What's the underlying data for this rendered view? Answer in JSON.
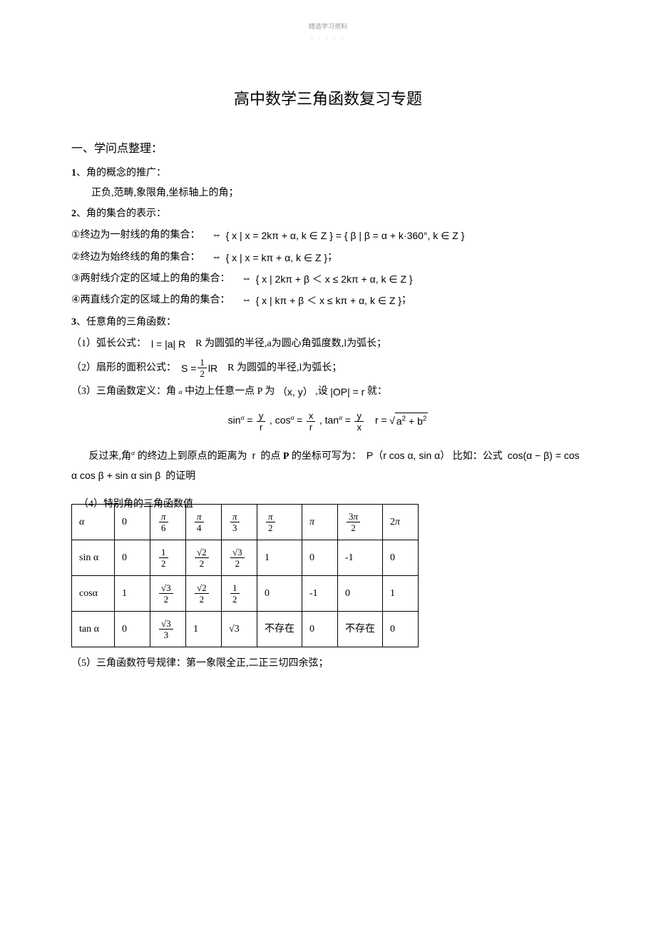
{
  "header": {
    "top_label": "精选学习资料",
    "dashes": "- - - - -"
  },
  "title": "高中数学三角函数复习专题",
  "section1": {
    "heading": "一、学问点整理：",
    "item1_num": "1",
    "item1_text": "、角的概念的推广：",
    "item1_sub": "正负,范畴,象限角,坐标轴上的角；",
    "item2_num": "2",
    "item2_text": "、角的集合的表示：",
    "sub1_num": "①",
    "sub1_label": "终边为一射线的角的集合：",
    "sub1_arrow": "⇔",
    "sub1_formula": "{ x | x = 2kπ + α, k ∈ Z } = { β | β = α + k·360°, k ∈ Z }",
    "sub2_num": "②",
    "sub2_label": "终边为始终线的角的集合：",
    "sub2_arrow": "⇔",
    "sub2_formula": "{ x | x = kπ + α, k ∈ Z }",
    "sub2_tail": "；",
    "sub3_num": "③",
    "sub3_label": "两射线介定的区域上的角的集合：",
    "sub3_arrow": "⇔",
    "sub3_formula": "{ x | 2kπ + β ＜ x ≤ 2kπ + α, k ∈ Z }",
    "sub4_num": "④",
    "sub4_label": "两直线介定的区域上的角的集合：",
    "sub4_arrow": "⇔",
    "sub4_formula": "{ x | kπ + β ＜ x ≤ kπ + α, k ∈ Z }",
    "sub4_tail": "；",
    "item3_num": "3",
    "item3_text": "、任意角的三角函数：",
    "p31_label": "（1）弧长公式：",
    "p31_formula": "l = |a| R",
    "p31_desc_r": "R 为圆弧的半径,",
    "p31_desc_a": "a为圆心角弧度数,",
    "p31_desc_l": "l为弧长；",
    "p32_label": "（2）扇形的面积公式：",
    "p32_s": "S =",
    "p32_half_num": "1",
    "p32_half_den": "2",
    "p32_lr": "lR",
    "p32_desc_r": "R 为圆弧的半径,",
    "p32_desc_l": "l为弧长；",
    "p33_label": "（3）三角函数定义：角",
    "p33_alpha": "α",
    "p33_mid1": "中边上任意一点 P 为",
    "p33_xy": "（x, y）",
    "p33_mid2": ",设",
    "p33_op": "|OP| = r",
    "p33_tail": "就：",
    "def_sin": "sin",
    "def_cos": ", cos",
    "def_tan": ",   tan",
    "def_y": "y",
    "def_x": "x",
    "def_r": "r",
    "def_eq": "=",
    "def_rexpr_prefix": "r =",
    "def_rexpr_a": "a",
    "def_rexpr_b": "b",
    "def_rexpr_plus": "+",
    "def_rexpr_2": "2",
    "para2_pre": "反过来,角",
    "para2_alpha": "α",
    "para2_mid1": "的终边上到原点的距离为",
    "para2_r": "r",
    "para2_mid2": "的点",
    "para2_P": "P",
    "para2_mid3": "的坐标可写为：",
    "para2_pt": "P（r cos α, sin α）",
    "para2_tail": "比如：公式",
    "para2_cosab": "cos(α − β) = cos α cos β + sin α sin β",
    "para2_proof": "的证明",
    "p34_label": "（4）特别角的三角函数值",
    "p35_label": "（5）三角函数符号规律：第一象限全正,二正三切四余弦；"
  },
  "table": {
    "headers": {
      "alpha": "α",
      "c0": "0",
      "c1_num": "π",
      "c1_den": "6",
      "c2_num": "π",
      "c2_den": "4",
      "c3_num": "π",
      "c3_den": "3",
      "c4_num": "π",
      "c4_den": "2",
      "c5": "π",
      "c6_coef": "3",
      "c6_num": "π",
      "c6_den": "2",
      "c7_coef": "2",
      "c7": "π"
    },
    "rows": {
      "sin": {
        "label": "sin α",
        "v0": "0",
        "v1_num": "1",
        "v1_den": "2",
        "v2_num_sqrt": "2",
        "v2_den": "2",
        "v3_num_sqrt": "3",
        "v3_den": "2",
        "v4": "1",
        "v5": "0",
        "v6": "-1",
        "v7": "0"
      },
      "cos": {
        "label": "cosα",
        "v0": "1",
        "v1_num_sqrt": "3",
        "v1_den": "2",
        "v2_num_sqrt": "2",
        "v2_den": "2",
        "v3_num": "1",
        "v3_den": "2",
        "v4": "0",
        "v5": "-1",
        "v6": "0",
        "v7": "1"
      },
      "tan": {
        "label": "tan α",
        "v0": "0",
        "v1_num_sqrt": "3",
        "v1_den": "3",
        "v2": "1",
        "v3_sqrt": "3",
        "v4": "不存在",
        "v5": "0",
        "v6": "不存在",
        "v7": "0"
      }
    }
  },
  "styling": {
    "body_width": 920,
    "body_bg": "#ffffff",
    "text_color": "#000000",
    "top_label_color": "#999999",
    "dash_color": "#bbbbbb",
    "title_fontsize": 22,
    "section_head_fontsize": 16,
    "body_fontsize": 14,
    "table_border_color": "#000000",
    "table_border_width": 1.5
  }
}
